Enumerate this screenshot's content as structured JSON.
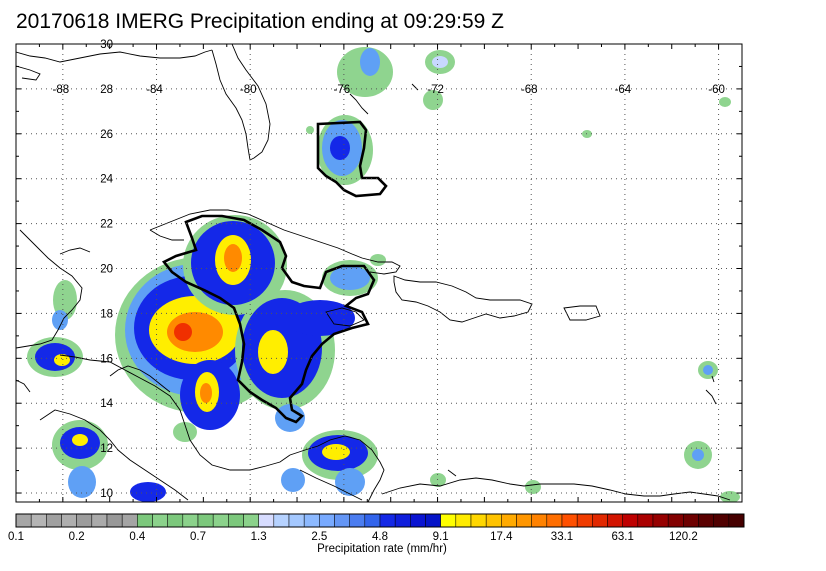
{
  "title": "20170618 IMERG Precipitation ending at 09:29:59 Z",
  "map": {
    "region": "Caribbean / Gulf of Mexico",
    "lon_range": [
      -90,
      -59
    ],
    "lat_range": [
      9.6,
      30
    ],
    "lon_labels": [
      "-88",
      "-84",
      "-80",
      "-76",
      "-72",
      "-68",
      "-64",
      "-60"
    ],
    "lat_labels": [
      "30",
      "28",
      "26",
      "24",
      "22",
      "20",
      "18",
      "16",
      "14",
      "12",
      "10"
    ],
    "grid": "dotted",
    "colors": {
      "land_outline": "#000000",
      "contour": "#000000",
      "light_green": "#8fd48f",
      "medium_blue": "#5fa0f5",
      "deep_blue": "#1428e8",
      "yellow": "#ffee00",
      "orange": "#ff8a00",
      "red": "#f03000"
    }
  },
  "colorbar": {
    "title": "Precipitation rate (mm/hr)",
    "tick_labels": [
      "0.1",
      "0.2",
      "0.4",
      "0.7",
      "1.3",
      "2.5",
      "4.8",
      "9.1",
      "17.4",
      "33.1",
      "63.1",
      "120.2"
    ],
    "colors": [
      "#a6a6a6",
      "#b4b4b4",
      "#a0a0a0",
      "#aeaeae",
      "#9c9c9c",
      "#aaaaaa",
      "#989898",
      "#a4a4a4",
      "#7cc87c",
      "#8bd28b",
      "#7cc87c",
      "#8bd28b",
      "#7cc87c",
      "#8bd28b",
      "#7cc87c",
      "#8bd28b",
      "#d7dcff",
      "#b6d2ff",
      "#a4c8ff",
      "#8cb9ff",
      "#78aaff",
      "#6496f5",
      "#4b7df0",
      "#3264eb",
      "#1428e6",
      "#0f1edc",
      "#0a14d2",
      "#0514c8",
      "#ffff00",
      "#ffeb00",
      "#ffd700",
      "#ffc300",
      "#ffaa00",
      "#ff9600",
      "#ff8200",
      "#ff6e00",
      "#ff5000",
      "#f03c00",
      "#e12800",
      "#d21400",
      "#be0000",
      "#aa0000",
      "#960000",
      "#820000",
      "#6e0000",
      "#5a0000",
      "#500000",
      "#460000"
    ]
  }
}
